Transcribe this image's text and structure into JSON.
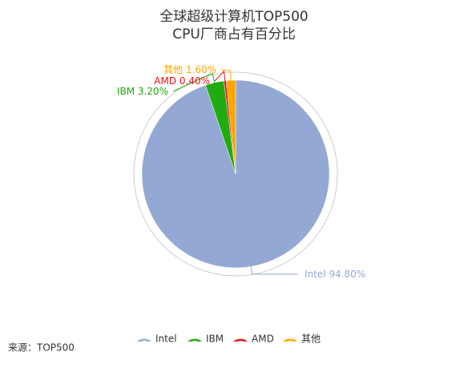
{
  "chart_data": {
    "type": "pie",
    "title": "全球超级计算机TOP500",
    "subtitle": "CPU厂商占有百分比",
    "categories": [
      "Intel",
      "IBM",
      "AMD",
      "其他"
    ],
    "values": [
      94.8,
      3.2,
      0.4,
      1.6
    ],
    "value_labels": [
      "94.80%",
      "3.20%",
      "0.40%",
      "1.60%"
    ],
    "colors": [
      "#93a8d2",
      "#22aa11",
      "#ee1111",
      "#ffa500"
    ],
    "source": "来源：TOP500"
  }
}
